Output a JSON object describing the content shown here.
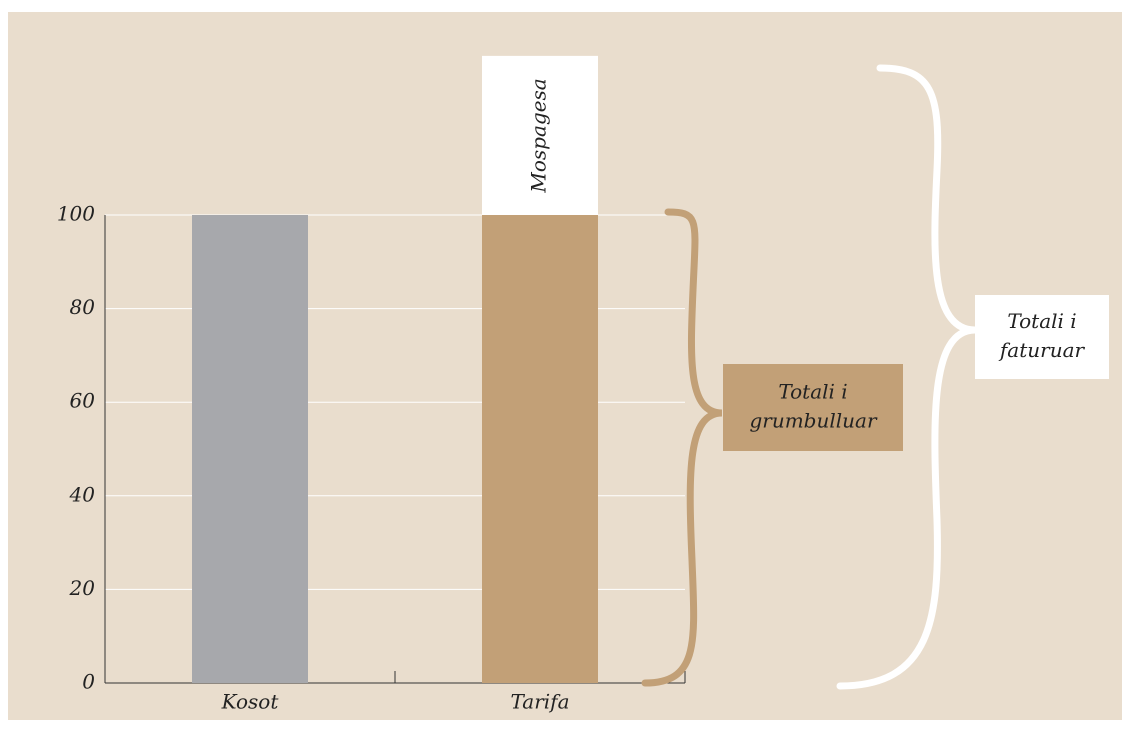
{
  "chart_data": {
    "type": "bar",
    "categories": [
      "Kosot",
      "Tarifa"
    ],
    "values": [
      100,
      100
    ],
    "colors": [
      "#a7a8ac",
      "#c2a077"
    ],
    "stack": {
      "name": "Mospagesa",
      "values": [
        null,
        34
      ],
      "color": "#ffffff"
    },
    "ylim": [
      0,
      100
    ],
    "yticks": [
      0,
      20,
      40,
      60,
      80,
      100
    ],
    "grid": true,
    "annotations": [
      {
        "lines": [
          "Totali i",
          "grumbulluar"
        ],
        "color": "#c2a077"
      },
      {
        "lines": [
          "Totali i",
          "faturuar"
        ],
        "color": "#ffffff"
      }
    ]
  }
}
